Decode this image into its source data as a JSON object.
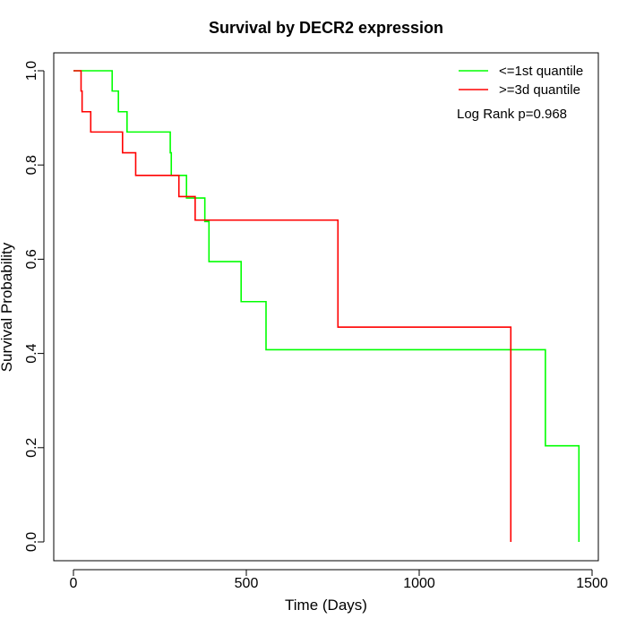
{
  "chart_data": {
    "type": "line",
    "title": "Survival by DECR2 expression",
    "xlabel": "Time (Days)",
    "ylabel": "Survival Probability",
    "xlim": [
      0,
      1500
    ],
    "ylim": [
      0,
      1
    ],
    "xticks": [
      0,
      500,
      1000,
      1500
    ],
    "yticks": [
      0.0,
      0.2,
      0.4,
      0.6,
      0.8,
      1.0
    ],
    "xtick_labels": [
      "0",
      "500",
      "1000",
      "1500"
    ],
    "ytick_labels": [
      "0.0",
      "0.2",
      "0.4",
      "0.6",
      "0.8",
      "1.0"
    ],
    "grid": false,
    "legend_position": "top-right",
    "annotation": "Log Rank p=0.968",
    "series": [
      {
        "name": "<=1st quantile",
        "color": "#00ff00",
        "step": true,
        "x": [
          0,
          112,
          130,
          155,
          280,
          283,
          327,
          380,
          392,
          485,
          557,
          1365,
          1462
        ],
        "y": [
          1.0,
          0.957,
          0.913,
          0.87,
          0.826,
          0.778,
          0.73,
          0.68,
          0.595,
          0.51,
          0.408,
          0.204,
          0.0
        ]
      },
      {
        "name": ">=3d quantile",
        "color": "#ff0000",
        "step": true,
        "x": [
          0,
          22,
          25,
          50,
          142,
          180,
          305,
          352,
          765,
          1265
        ],
        "y": [
          1.0,
          0.957,
          0.913,
          0.87,
          0.826,
          0.778,
          0.733,
          0.683,
          0.456,
          0.0
        ]
      }
    ]
  }
}
